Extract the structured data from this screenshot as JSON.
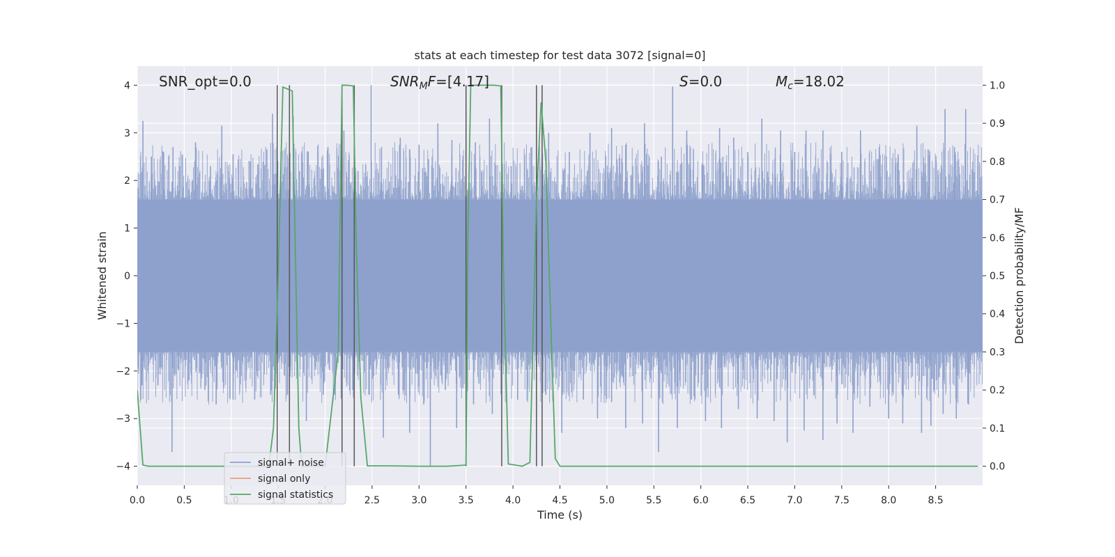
{
  "chart_data": {
    "type": "line",
    "title": "stats at each timestep for test data 3072 [signal=0]",
    "xlabel": "Time (s)",
    "ylabel_left": "Whitened strain",
    "ylabel_right": "Detection probability/MF",
    "xlim": [
      0.0,
      9.0
    ],
    "ylim_left": [
      -4.4,
      4.4
    ],
    "ylim_right": [
      -0.05,
      1.05
    ],
    "x_ticks": [
      "0.0",
      "0.5",
      "1.0",
      "1.5",
      "2.0",
      "2.5",
      "3.0",
      "3.5",
      "4.0",
      "4.5",
      "5.0",
      "5.5",
      "6.0",
      "6.5",
      "7.0",
      "7.5",
      "8.0",
      "8.5"
    ],
    "y_ticks_left": [
      "−4",
      "−3",
      "−2",
      "−1",
      "0",
      "1",
      "2",
      "3",
      "4"
    ],
    "y_ticks_right": [
      "0.0",
      "0.1",
      "0.2",
      "0.3",
      "0.4",
      "0.5",
      "0.6",
      "0.7",
      "0.8",
      "0.9",
      "1.0"
    ],
    "grid": true,
    "annotations": {
      "snr_opt": "SNR_opt=0.0",
      "snr_mf_var": "SNR",
      "snr_mf_sub": "M",
      "snr_mf_var2": "F",
      "snr_mf_val": "=[4.17]",
      "s_var": "S",
      "s_val": "=0.0",
      "mc_var": "M",
      "mc_sub": "c",
      "mc_val": "=18.02"
    },
    "legend": {
      "placement": "lower-left",
      "entries": [
        "signal+ noise",
        "signal only",
        "signal statistics"
      ]
    },
    "colors": {
      "noise": "#8da0cb",
      "signal_only": "#e5a07a",
      "statistics": "#55a868",
      "event_lines": "#555555",
      "background": "#eaeaf2"
    },
    "series": [
      {
        "name": "signal statistics",
        "axis": "right",
        "x": [
          0.0,
          0.06,
          0.12,
          0.5,
          1.0,
          1.4,
          1.45,
          1.5,
          1.55,
          1.6,
          1.65,
          1.68,
          1.72,
          1.75,
          1.8,
          2.0,
          2.14,
          2.18,
          2.23,
          2.3,
          2.33,
          2.38,
          2.45,
          2.7,
          3.0,
          3.3,
          3.5,
          3.52,
          3.55,
          3.6,
          3.8,
          3.87,
          3.9,
          3.95,
          4.1,
          4.18,
          4.25,
          4.3,
          4.35,
          4.4,
          4.45,
          4.5,
          5.0,
          6.0,
          7.0,
          8.0,
          8.95
        ],
        "values": [
          0.2,
          0.003,
          0.0,
          0.0,
          0.0,
          0.0,
          0.1,
          0.5,
          0.995,
          0.99,
          0.985,
          0.6,
          0.1,
          0.0,
          0.0,
          0.0,
          0.3,
          1.0,
          1.0,
          0.998,
          0.6,
          0.18,
          0.001,
          0.001,
          0.0,
          0.0,
          0.003,
          0.6,
          1.0,
          1.0,
          1.0,
          0.998,
          0.5,
          0.006,
          0.0,
          0.01,
          0.7,
          0.955,
          0.8,
          0.4,
          0.02,
          0.0,
          0.0,
          0.0,
          0.0,
          0.0,
          0.0
        ]
      }
    ],
    "noise_series": {
      "name": "signal+ noise",
      "axis": "left",
      "envelope_abs": 1.6,
      "peaks_max": [
        [
          0.06,
          3.25
        ],
        [
          0.15,
          2.5
        ],
        [
          0.28,
          2.6
        ],
        [
          0.38,
          2.7
        ],
        [
          0.45,
          2.3
        ],
        [
          0.62,
          2.8
        ],
        [
          0.78,
          2.3
        ],
        [
          0.9,
          3.15
        ],
        [
          1.02,
          2.55
        ],
        [
          1.2,
          2.4
        ],
        [
          1.38,
          2.65
        ],
        [
          1.44,
          3.4
        ],
        [
          1.53,
          2.6
        ],
        [
          1.66,
          3.35
        ],
        [
          1.82,
          2.6
        ],
        [
          2.03,
          2.7
        ],
        [
          2.2,
          3.05
        ],
        [
          2.35,
          2.2
        ],
        [
          2.49,
          4.0
        ],
        [
          2.6,
          2.7
        ],
        [
          2.8,
          2.9
        ],
        [
          3.0,
          2.75
        ],
        [
          3.1,
          2.45
        ],
        [
          3.2,
          3.2
        ],
        [
          3.35,
          2.85
        ],
        [
          3.6,
          2.8
        ],
        [
          3.75,
          3.3
        ],
        [
          3.98,
          2.3
        ],
        [
          4.2,
          2.7
        ],
        [
          4.38,
          3.0
        ],
        [
          4.6,
          2.6
        ],
        [
          4.82,
          3.0
        ],
        [
          5.05,
          3.1
        ],
        [
          5.2,
          2.75
        ],
        [
          5.4,
          3.2
        ],
        [
          5.58,
          2.5
        ],
        [
          5.7,
          3.97
        ],
        [
          5.85,
          3.05
        ],
        [
          6.02,
          2.3
        ],
        [
          6.2,
          3.1
        ],
        [
          6.35,
          2.9
        ],
        [
          6.5,
          2.6
        ],
        [
          6.65,
          3.3
        ],
        [
          6.85,
          3.05
        ],
        [
          7.0,
          2.6
        ],
        [
          7.12,
          3.05
        ],
        [
          7.3,
          3.05
        ],
        [
          7.5,
          2.6
        ],
        [
          7.7,
          3.05
        ],
        [
          7.9,
          2.7
        ],
        [
          8.1,
          2.55
        ],
        [
          8.3,
          3.15
        ],
        [
          8.42,
          2.65
        ],
        [
          8.6,
          3.5
        ],
        [
          8.7,
          2.7
        ],
        [
          8.82,
          3.5
        ],
        [
          8.95,
          2.3
        ]
      ],
      "peaks_min": [
        [
          0.05,
          -2.3
        ],
        [
          0.22,
          -2.3
        ],
        [
          0.37,
          -3.7
        ],
        [
          0.55,
          -2.2
        ],
        [
          0.72,
          -2.4
        ],
        [
          0.84,
          -2.7
        ],
        [
          1.02,
          -2.6
        ],
        [
          1.25,
          -2.6
        ],
        [
          1.42,
          -2.5
        ],
        [
          1.6,
          -2.5
        ],
        [
          1.8,
          -3.05
        ],
        [
          1.98,
          -2.5
        ],
        [
          2.1,
          -2.5
        ],
        [
          2.3,
          -2.4
        ],
        [
          2.47,
          -2.5
        ],
        [
          2.62,
          -3.4
        ],
        [
          2.78,
          -2.5
        ],
        [
          2.9,
          -3.3
        ],
        [
          3.05,
          -2.7
        ],
        [
          3.12,
          -4.0
        ],
        [
          3.28,
          -2.4
        ],
        [
          3.4,
          -3.2
        ],
        [
          3.58,
          -2.7
        ],
        [
          3.78,
          -2.9
        ],
        [
          4.05,
          -2.6
        ],
        [
          4.35,
          -2.5
        ],
        [
          4.52,
          -3.3
        ],
        [
          4.75,
          -2.6
        ],
        [
          4.9,
          -3.0
        ],
        [
          5.05,
          -2.65
        ],
        [
          5.2,
          -3.2
        ],
        [
          5.38,
          -3.1
        ],
        [
          5.55,
          -3.7
        ],
        [
          5.75,
          -3.2
        ],
        [
          5.9,
          -2.6
        ],
        [
          6.05,
          -3.05
        ],
        [
          6.22,
          -3.2
        ],
        [
          6.4,
          -2.8
        ],
        [
          6.6,
          -3.0
        ],
        [
          6.78,
          -3.05
        ],
        [
          6.92,
          -3.5
        ],
        [
          7.1,
          -3.25
        ],
        [
          7.3,
          -3.45
        ],
        [
          7.45,
          -3.1
        ],
        [
          7.62,
          -3.3
        ],
        [
          7.8,
          -2.75
        ],
        [
          8.0,
          -3.0
        ],
        [
          8.15,
          -3.1
        ],
        [
          8.35,
          -3.3
        ],
        [
          8.45,
          -3.15
        ],
        [
          8.58,
          -2.9
        ],
        [
          8.72,
          -3.0
        ],
        [
          8.85,
          -2.7
        ]
      ]
    },
    "event_lines_x": [
      1.49,
      1.62,
      2.18,
      2.31,
      3.5,
      3.88,
      4.25,
      4.31
    ]
  }
}
